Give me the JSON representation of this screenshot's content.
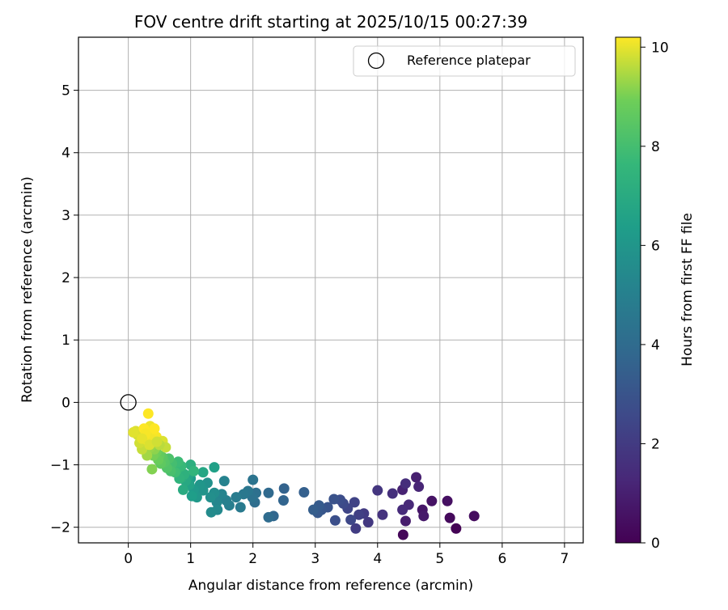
{
  "chart_data": {
    "type": "scatter",
    "title": "FOV centre drift starting at 2025/10/15 00:27:39",
    "xlabel": "Angular distance from reference (arcmin)",
    "ylabel": "Rotation from reference (arcmin)",
    "xlim": [
      -0.8,
      7.3
    ],
    "ylim": [
      -2.25,
      5.85
    ],
    "xticks": [
      0,
      1,
      2,
      3,
      4,
      5,
      6,
      7
    ],
    "yticks": [
      -2,
      -1,
      0,
      1,
      2,
      3,
      4,
      5
    ],
    "grid": true,
    "legend": {
      "placement": "top-right",
      "entries": [
        "Reference platepar"
      ]
    },
    "reference_point": {
      "x": 0,
      "y": 0,
      "name": "Reference platepar"
    },
    "colorbar": {
      "label": "Hours from first FF file",
      "range": [
        0,
        10.2
      ],
      "ticks": [
        0,
        2,
        4,
        6,
        8,
        10
      ],
      "colormap": "viridis"
    },
    "series": [
      {
        "name": "FOV centre",
        "points": [
          [
            5.26,
            -2.02,
            0.05
          ],
          [
            4.41,
            -2.12,
            0.2
          ],
          [
            5.16,
            -1.85,
            0.3
          ],
          [
            5.55,
            -1.82,
            0.4
          ],
          [
            5.12,
            -1.58,
            0.5
          ],
          [
            4.87,
            -1.58,
            0.6
          ],
          [
            4.72,
            -1.72,
            0.7
          ],
          [
            4.74,
            -1.82,
            0.8
          ],
          [
            4.45,
            -1.9,
            0.9
          ],
          [
            4.62,
            -1.2,
            1.0
          ],
          [
            4.4,
            -1.4,
            1.1
          ],
          [
            4.66,
            -1.35,
            1.2
          ],
          [
            4.5,
            -1.64,
            1.3
          ],
          [
            4.4,
            -1.72,
            1.4
          ],
          [
            4.45,
            -1.3,
            1.5
          ],
          [
            4.24,
            -1.46,
            1.6
          ],
          [
            4.08,
            -1.8,
            1.7
          ],
          [
            4.0,
            -1.41,
            1.8
          ],
          [
            3.85,
            -1.92,
            1.9
          ],
          [
            3.78,
            -1.78,
            2.0
          ],
          [
            3.65,
            -2.02,
            2.1
          ],
          [
            3.7,
            -1.8,
            2.2
          ],
          [
            3.63,
            -1.6,
            2.3
          ],
          [
            3.52,
            -1.7,
            2.4
          ],
          [
            3.57,
            -1.88,
            2.5
          ],
          [
            3.45,
            -1.62,
            2.6
          ],
          [
            3.4,
            -1.56,
            2.7
          ],
          [
            3.32,
            -1.89,
            2.8
          ],
          [
            3.3,
            -1.55,
            2.9
          ],
          [
            3.2,
            -1.68,
            3.0
          ],
          [
            3.1,
            -1.72,
            3.1
          ],
          [
            3.04,
            -1.77,
            3.2
          ],
          [
            3.06,
            -1.65,
            3.3
          ],
          [
            2.97,
            -1.72,
            3.4
          ],
          [
            2.82,
            -1.44,
            3.5
          ],
          [
            2.5,
            -1.38,
            3.6
          ],
          [
            2.49,
            -1.57,
            3.7
          ],
          [
            2.33,
            -1.82,
            3.8
          ],
          [
            2.25,
            -1.45,
            3.9
          ],
          [
            2.25,
            -1.84,
            4.0
          ],
          [
            2.03,
            -1.6,
            4.1
          ],
          [
            2.05,
            -1.45,
            4.2
          ],
          [
            1.99,
            -1.52,
            4.3
          ],
          [
            2.0,
            -1.24,
            4.4
          ],
          [
            1.92,
            -1.42,
            4.5
          ],
          [
            1.85,
            -1.47,
            4.6
          ],
          [
            1.8,
            -1.68,
            4.7
          ],
          [
            1.73,
            -1.52,
            4.8
          ],
          [
            1.62,
            -1.65,
            4.9
          ],
          [
            1.57,
            -1.57,
            5.0
          ],
          [
            1.54,
            -1.26,
            5.1
          ],
          [
            1.5,
            -1.47,
            5.2
          ],
          [
            1.42,
            -1.6,
            5.3
          ],
          [
            1.43,
            -1.72,
            5.4
          ],
          [
            1.33,
            -1.76,
            5.5
          ],
          [
            1.38,
            -1.45,
            5.6
          ],
          [
            1.32,
            -1.52,
            5.7
          ],
          [
            1.27,
            -1.29,
            5.8
          ],
          [
            1.2,
            -1.41,
            5.9
          ],
          [
            1.15,
            -1.32,
            6.0
          ],
          [
            1.1,
            -1.52,
            6.1
          ],
          [
            1.05,
            -1.4,
            6.2
          ],
          [
            1.0,
            -1.22,
            6.3
          ],
          [
            1.02,
            -1.5,
            6.4
          ],
          [
            1.38,
            -1.04,
            6.5
          ],
          [
            0.98,
            -1.32,
            6.6
          ],
          [
            0.96,
            -1.18,
            6.7
          ],
          [
            1.2,
            -1.12,
            6.8
          ],
          [
            0.92,
            -1.26,
            6.9
          ],
          [
            0.88,
            -1.4,
            7.0
          ],
          [
            0.86,
            -1.2,
            7.1
          ],
          [
            1.0,
            -1.0,
            7.2
          ],
          [
            0.9,
            -1.15,
            7.3
          ],
          [
            0.82,
            -1.22,
            7.4
          ],
          [
            1.05,
            -1.1,
            7.5
          ],
          [
            0.78,
            -1.08,
            7.6
          ],
          [
            0.85,
            -1.02,
            7.7
          ],
          [
            0.8,
            -0.95,
            7.8
          ],
          [
            0.75,
            -1.12,
            7.9
          ],
          [
            0.7,
            -0.98,
            8.0
          ],
          [
            0.68,
            -1.1,
            8.1
          ],
          [
            0.65,
            -0.9,
            8.2
          ],
          [
            0.62,
            -1.05,
            8.3
          ],
          [
            0.58,
            -0.96,
            8.4
          ],
          [
            0.55,
            -0.88,
            8.5
          ],
          [
            0.52,
            -0.98,
            8.6
          ],
          [
            0.5,
            -0.85,
            8.7
          ],
          [
            0.48,
            -0.92,
            8.8
          ],
          [
            0.45,
            -0.8,
            8.9
          ],
          [
            0.4,
            -0.85,
            9.0
          ],
          [
            0.38,
            -1.07,
            9.1
          ],
          [
            0.42,
            -0.75,
            9.2
          ],
          [
            0.35,
            -0.72,
            9.3
          ],
          [
            0.3,
            -0.85,
            9.4
          ],
          [
            0.28,
            -0.68,
            9.5
          ],
          [
            0.25,
            -0.62,
            9.6
          ],
          [
            0.22,
            -0.75,
            9.7
          ],
          [
            0.2,
            -0.55,
            9.75
          ],
          [
            0.18,
            -0.65,
            9.8
          ],
          [
            0.15,
            -0.52,
            9.85
          ],
          [
            0.12,
            -0.46,
            9.9
          ],
          [
            0.08,
            -0.48,
            9.95
          ],
          [
            0.32,
            -0.45,
            10.0
          ],
          [
            0.35,
            -0.38,
            10.05
          ],
          [
            0.4,
            -0.5,
            10.1
          ],
          [
            0.45,
            -0.55,
            10.15
          ],
          [
            0.3,
            -0.6,
            10.2
          ],
          [
            0.32,
            -0.18,
            10.2
          ],
          [
            0.25,
            -0.42,
            10.2
          ],
          [
            0.55,
            -0.62,
            9.9
          ],
          [
            0.6,
            -0.72,
            9.7
          ],
          [
            0.38,
            -0.6,
            10.1
          ],
          [
            0.28,
            -0.5,
            10.15
          ],
          [
            0.42,
            -0.42,
            10.2
          ],
          [
            0.5,
            -0.68,
            9.6
          ],
          [
            0.22,
            -0.58,
            10.0
          ],
          [
            0.34,
            -0.68,
            9.9
          ],
          [
            0.46,
            -0.63,
            9.8
          ]
        ]
      }
    ]
  }
}
